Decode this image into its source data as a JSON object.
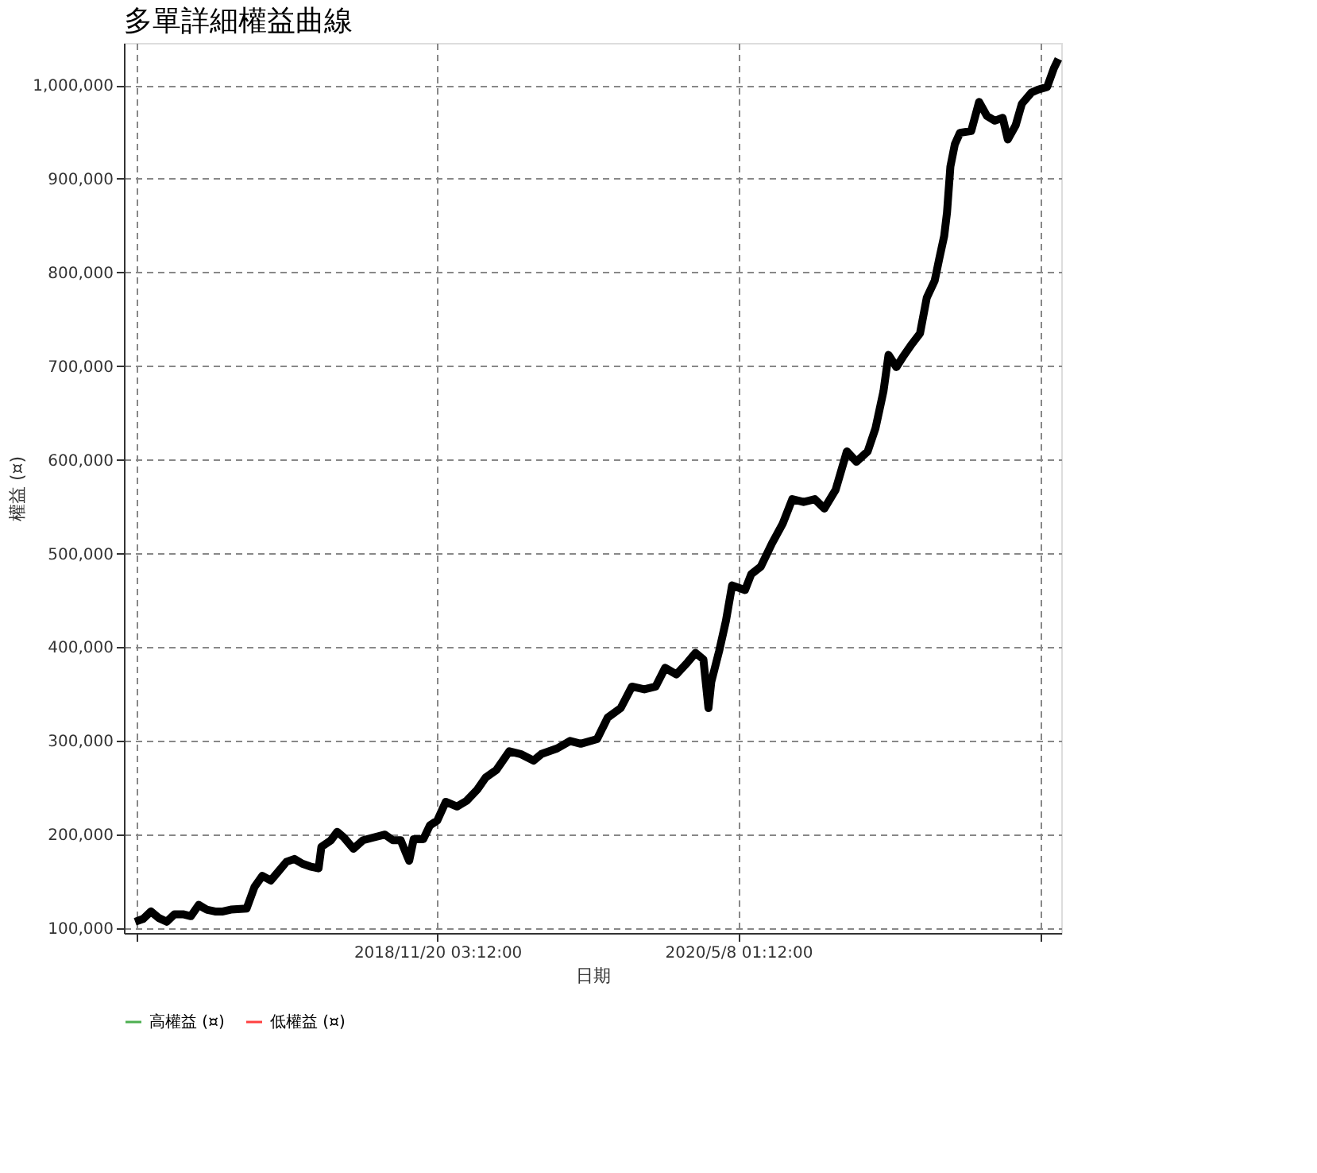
{
  "chart_data": {
    "type": "line",
    "title": "多單詳細權益曲線",
    "xlabel": "日期",
    "ylabel": "權益 (¤)",
    "x": [
      "2017-06-01",
      "2017-06-15",
      "2017-06-29",
      "2017-07-13",
      "2017-07-27",
      "2017-08-10",
      "2017-08-25",
      "2017-09-08",
      "2017-09-22",
      "2017-10-06",
      "2017-10-21",
      "2017-11-04",
      "2017-11-18",
      "2017-12-16",
      "2017-12-30",
      "2018-01-13",
      "2018-01-28",
      "2018-02-11",
      "2018-02-25",
      "2018-03-11",
      "2018-03-25",
      "2018-04-08",
      "2018-04-23",
      "2018-04-28",
      "2018-05-15",
      "2018-05-26",
      "2018-06-07",
      "2018-06-24",
      "2018-07-11",
      "2018-07-30",
      "2018-08-19",
      "2018-09-02",
      "2018-09-16",
      "2018-10-01",
      "2018-10-09",
      "2018-10-26",
      "2018-11-07",
      "2018-11-20",
      "2018-12-05",
      "2018-12-25",
      "2019-01-11",
      "2019-01-30",
      "2019-02-14",
      "2019-03-05",
      "2019-03-28",
      "2019-04-17",
      "2019-05-10",
      "2019-05-24",
      "2019-06-21",
      "2019-07-14",
      "2019-08-02",
      "2019-08-31",
      "2019-09-19",
      "2019-10-12",
      "2019-11-01",
      "2019-11-23",
      "2019-12-13",
      "2019-12-30",
      "2020-01-19",
      "2020-02-08",
      "2020-02-22",
      "2020-03-07",
      "2020-03-16",
      "2020-03-21",
      "2020-04-04",
      "2020-04-16",
      "2020-04-27",
      "2020-05-20",
      "2020-05-31",
      "2020-06-17",
      "2020-07-07",
      "2020-07-26",
      "2020-08-12",
      "2020-09-01",
      "2020-09-21",
      "2020-10-08",
      "2020-10-28",
      "2020-11-17",
      "2020-12-04",
      "2020-12-24",
      "2021-01-07",
      "2021-01-21",
      "2021-01-30",
      "2021-02-13",
      "2021-02-27",
      "2021-03-13",
      "2021-03-27",
      "2021-04-08",
      "2021-04-22",
      "2021-04-30",
      "2021-05-09",
      "2021-05-14",
      "2021-05-20",
      "2021-05-28",
      "2021-06-06",
      "2021-06-26",
      "2021-07-10",
      "2021-07-24",
      "2021-08-07",
      "2021-08-21",
      "2021-08-30",
      "2021-09-13",
      "2021-09-24",
      "2021-10-11",
      "2021-10-22",
      "2021-11-08",
      "2021-11-20",
      "2021-11-28"
    ],
    "series": [
      {
        "color": "#000000",
        "values": [
          107000,
          110000,
          118000,
          111000,
          107000,
          115000,
          115000,
          113000,
          125000,
          120000,
          118000,
          118000,
          120000,
          121000,
          144000,
          156000,
          151000,
          161000,
          171000,
          174000,
          169000,
          166000,
          164000,
          187000,
          194000,
          203000,
          197000,
          185000,
          194000,
          197000,
          200000,
          194000,
          194000,
          172000,
          195000,
          195000,
          210000,
          215000,
          235000,
          230000,
          236000,
          248000,
          261000,
          269000,
          289000,
          286000,
          279000,
          286000,
          292000,
          300000,
          297000,
          302000,
          325000,
          335000,
          358000,
          355000,
          358000,
          378000,
          371000,
          384000,
          394000,
          387000,
          335000,
          363000,
          396000,
          428000,
          466000,
          461000,
          478000,
          486000,
          511000,
          532000,
          558000,
          555000,
          558000,
          548000,
          568000,
          609000,
          598000,
          609000,
          634000,
          673000,
          712000,
          699000,
          712000,
          724000,
          735000,
          773000,
          791000,
          814000,
          839000,
          864000,
          913000,
          937000,
          949000,
          951000,
          982000,
          967000,
          962000,
          965000,
          942000,
          957000,
          980000,
          992000,
          995000,
          998000,
          1018000,
          1028000
        ]
      },
      {
        "name": "高權益 (¤)",
        "color": "#4caf50",
        "values": [
          null,
          null,
          null,
          null,
          null,
          null,
          null,
          null,
          null,
          null,
          null,
          null,
          null,
          null,
          null,
          null,
          null,
          null,
          null,
          null,
          null,
          null,
          null,
          null,
          null,
          null,
          null,
          null,
          null,
          null,
          null,
          null,
          null,
          null,
          null,
          null,
          null,
          null,
          null,
          null,
          null,
          null,
          null,
          null,
          null,
          null,
          null,
          null,
          null,
          null,
          null,
          null,
          null,
          null,
          null,
          null,
          null,
          null,
          null,
          null,
          null,
          null,
          null,
          null,
          null,
          null,
          null,
          null,
          null,
          null,
          null,
          null,
          null,
          null,
          null,
          null,
          null,
          null,
          null,
          null,
          null,
          null,
          null,
          null,
          null,
          null,
          null,
          null,
          null,
          null,
          null,
          null,
          null,
          null,
          null,
          null,
          null,
          null,
          null,
          null,
          null,
          null,
          null,
          null,
          null,
          null,
          null,
          null
        ]
      },
      {
        "name": "低權益 (¤)",
        "color": "#ff4040",
        "values": [
          null,
          null,
          null,
          null,
          null,
          null,
          null,
          null,
          null,
          null,
          null,
          null,
          null,
          null,
          null,
          null,
          null,
          null,
          null,
          null,
          null,
          null,
          null,
          null,
          null,
          null,
          null,
          null,
          null,
          null,
          null,
          null,
          null,
          null,
          null,
          null,
          null,
          null,
          null,
          null,
          null,
          null,
          null,
          null,
          null,
          null,
          null,
          null,
          null,
          null,
          null,
          null,
          null,
          null,
          null,
          null,
          null,
          null,
          null,
          null,
          null,
          null,
          null,
          null,
          null,
          null,
          null,
          null,
          null,
          null,
          null,
          null,
          null,
          null,
          null,
          null,
          null,
          null,
          null,
          null,
          null,
          null,
          null,
          null,
          null,
          null,
          null,
          null,
          null,
          null,
          null,
          null,
          null,
          null,
          null,
          null,
          null,
          null,
          null,
          null,
          null,
          null,
          null,
          null,
          null,
          null,
          null,
          null
        ]
      }
    ],
    "xlim": [
      "2017-05-12",
      "2021-12-03"
    ],
    "xticks": [
      {
        "value": "2017-06-03T05:12",
        "label": null
      },
      {
        "value": "2018-11-20T03:12",
        "label": "2018/11/20 03:12:00"
      },
      {
        "value": "2020-05-08T01:12",
        "label": "2020/5/8 01:12:00"
      },
      {
        "value": "2021-10-25T23:12",
        "label": null
      }
    ],
    "ylim": [
      95000,
      1045000
    ],
    "yticks": [
      {
        "value": 100000,
        "label": "100,000"
      },
      {
        "value": 200000,
        "label": "200,000"
      },
      {
        "value": 300000,
        "label": "300,000"
      },
      {
        "value": 400000,
        "label": "400,000"
      },
      {
        "value": 500000,
        "label": "500,000"
      },
      {
        "value": 600000,
        "label": "600,000"
      },
      {
        "value": 700000,
        "label": "700,000"
      },
      {
        "value": 800000,
        "label": "800,000"
      },
      {
        "value": 900000,
        "label": "900,000"
      },
      {
        "value": 1000000,
        "label": "1,000,000"
      }
    ],
    "grid": true,
    "legend": "bottom",
    "marker": "none",
    "line_style": "solid"
  }
}
